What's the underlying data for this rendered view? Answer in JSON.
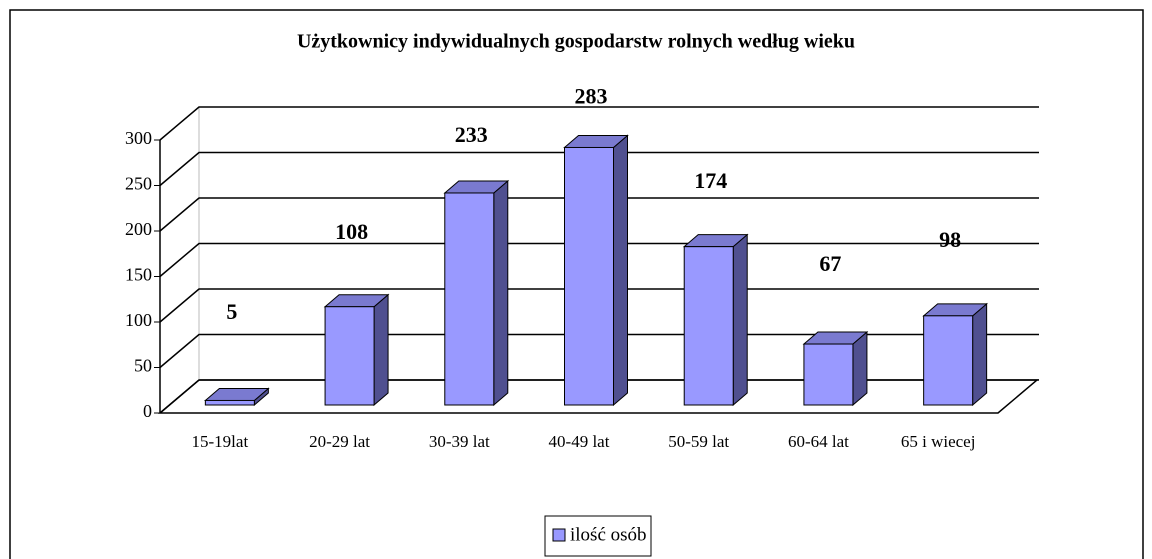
{
  "chart_data": {
    "type": "bar3d",
    "title": "Użytkownicy indywidualnych gospodarstw rolnych według wieku",
    "categories": [
      "15-19lat",
      "20-29 lat",
      "30-39 lat",
      "40-49 lat",
      "50-59 lat",
      "60-64 lat",
      "65 i wiecej"
    ],
    "series": [
      {
        "name": "ilość osób",
        "color": "#9999ff",
        "values": [
          5,
          108,
          233,
          283,
          174,
          67,
          98
        ]
      }
    ],
    "ylim": [
      0,
      300
    ],
    "yticks": [
      0,
      50,
      100,
      150,
      200,
      250,
      300
    ],
    "grid": true,
    "legend": "bottom"
  }
}
